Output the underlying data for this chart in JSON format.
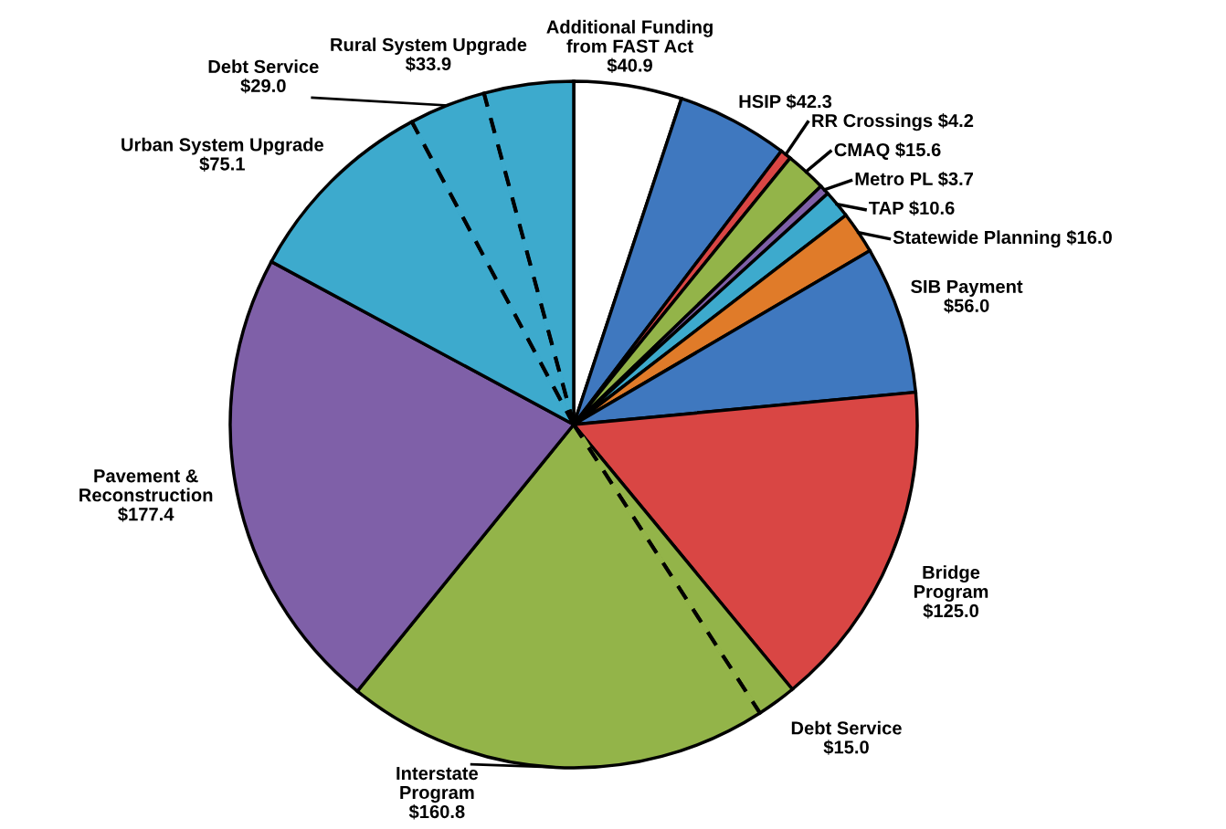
{
  "chart_data": {
    "type": "pie",
    "categories": [
      "Additional Funding\nfrom FAST Act\n$40.9",
      "HSIP $42.3",
      "RR Crossings $4.2",
      "CMAQ $15.6",
      "Metro PL $3.7",
      "TAP $10.6",
      "Statewide Planning $16.0",
      "SIB Payment\n$56.0",
      "Bridge\nProgram\n$125.0",
      "Debt Service\n$15.0",
      "Interstate\nProgram\n$160.8",
      "Pavement &\nReconstruction\n$177.4",
      "Urban System Upgrade\n$75.1",
      "Debt Service\n$29.0",
      "Rural System Upgrade\n$33.9"
    ],
    "values": [
      40.9,
      42.3,
      4.2,
      15.6,
      3.7,
      10.6,
      16.0,
      56.0,
      125.0,
      15.0,
      160.8,
      177.4,
      75.1,
      29.0,
      33.9
    ],
    "colors": [
      "#ffffff",
      "#3f78bf",
      "#d94644",
      "#93b449",
      "#7f60a8",
      "#3daacd",
      "#e07b29",
      "#3f78bf",
      "#d94644",
      "#93b449",
      "#93b449",
      "#7f60a8",
      "#3daacd",
      "#3daacd",
      "#3daacd"
    ]
  }
}
